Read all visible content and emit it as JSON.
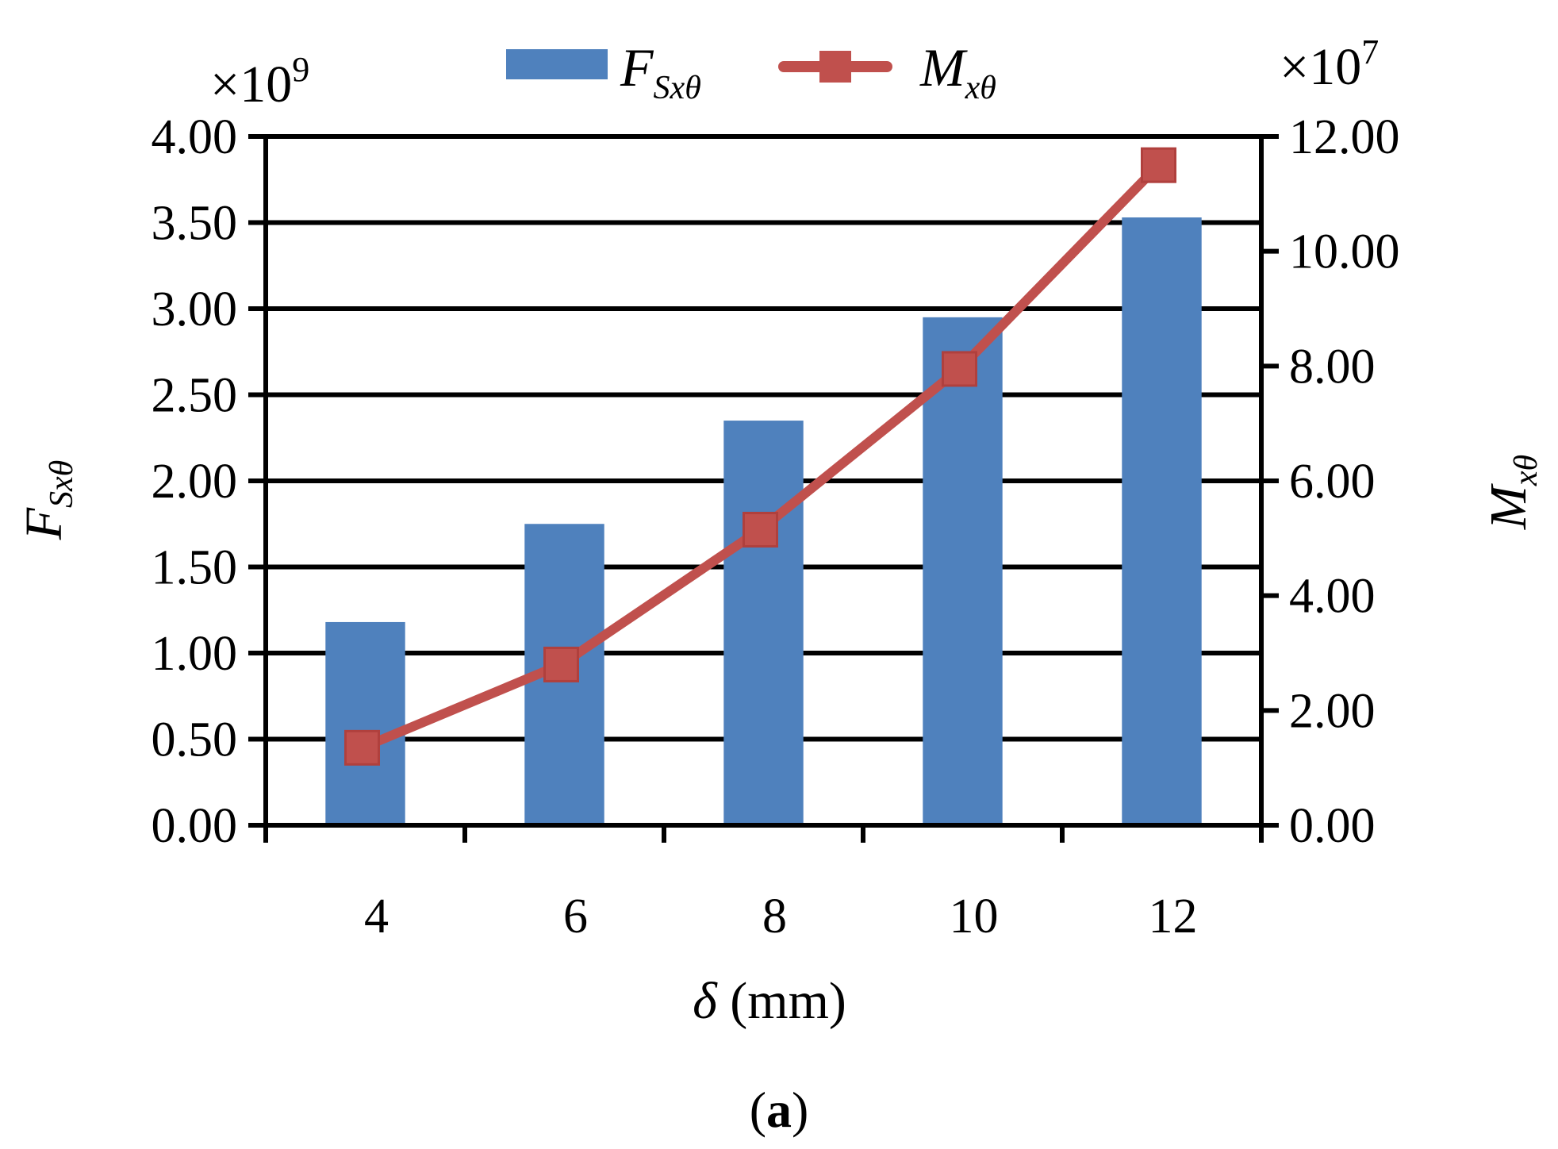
{
  "chart_data": {
    "type": "bar+line",
    "categories": [
      "4",
      "6",
      "8",
      "10",
      "12"
    ],
    "series": [
      {
        "name": "F_Sxθ",
        "kind": "bar",
        "axis": "left",
        "color": "#4f81bd",
        "values": [
          1.18,
          1.75,
          2.35,
          2.95,
          3.53
        ]
      },
      {
        "name": "M_xθ",
        "kind": "line",
        "axis": "right",
        "color": "#c0504d",
        "marker": "square",
        "values": [
          1.35,
          2.8,
          5.15,
          7.95,
          11.5
        ]
      }
    ],
    "left_axis": {
      "label_main": "F",
      "label_sub": "Sxθ",
      "multiplier_base": "×10",
      "multiplier_exp": "9",
      "ylim": [
        0,
        4
      ],
      "ticks": [
        0,
        0.5,
        1,
        1.5,
        2,
        2.5,
        3,
        3.5,
        4
      ],
      "tick_labels": [
        "0.00",
        "0.50",
        "1.00",
        "1.50",
        "2.00",
        "2.50",
        "3.00",
        "3.50",
        "4.00"
      ]
    },
    "right_axis": {
      "label_main": "M",
      "label_sub": "xθ",
      "multiplier_base": "×10",
      "multiplier_exp": "7",
      "ylim": [
        0,
        12
      ],
      "ticks": [
        0,
        2,
        4,
        6,
        8,
        10,
        12
      ],
      "tick_labels": [
        "0.00",
        "2.00",
        "4.00",
        "6.00",
        "8.00",
        "10.00",
        "12.00"
      ]
    },
    "x_axis": {
      "label_symbol": "δ",
      "label_unit": " (mm)"
    },
    "legend": {
      "position": "top",
      "entries": [
        {
          "main": "F",
          "sub": "Sxθ"
        },
        {
          "main": "M",
          "sub": "xθ"
        }
      ]
    },
    "grid": true,
    "panel_label": {
      "open": "(",
      "letter": "a",
      "close": ")"
    }
  }
}
